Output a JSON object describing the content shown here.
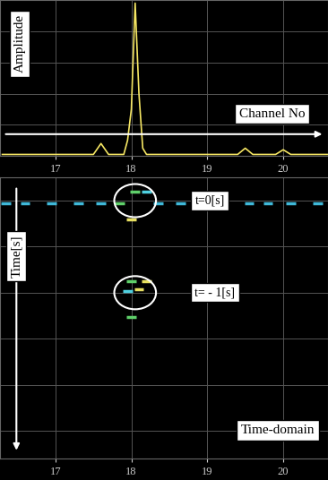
{
  "chart_data": [
    {
      "type": "line",
      "y_label": "Amplitude",
      "x_label": "Channel No",
      "x": [
        16.3,
        16.6,
        16.9,
        17.2,
        17.5,
        17.6,
        17.7,
        17.9,
        17.95,
        18.0,
        18.05,
        18.1,
        18.15,
        18.2,
        18.5,
        18.8,
        19.1,
        19.4,
        19.5,
        19.6,
        19.9,
        20.0,
        20.1,
        20.4,
        20.59
      ],
      "values": [
        1,
        1,
        1,
        1,
        1,
        8,
        1,
        1,
        10,
        30,
        98,
        40,
        5,
        1,
        1,
        1,
        1,
        1,
        5,
        1,
        1,
        4,
        1,
        1,
        1
      ],
      "color": "#f5e663",
      "xlim": [
        16.27,
        20.59
      ],
      "xticks": [
        17,
        18,
        19,
        20
      ],
      "ylim": [
        0,
        100
      ],
      "yticks": [
        0,
        20,
        40,
        60,
        80,
        100
      ],
      "grid": true,
      "tick_labels": "x"
    },
    {
      "type": "scatter",
      "title": "Time-domain",
      "y_label": "Time[s]",
      "marker": "_",
      "x": [
        16.35,
        16.6,
        16.95,
        17.3,
        17.6,
        17.85,
        18.35,
        18.65,
        19.15,
        19.55,
        19.8,
        20.1,
        20.45,
        18.05,
        18.2,
        18.0,
        18.0,
        18.2,
        18.1,
        17.95,
        18.0
      ],
      "values": [
        -0.03,
        -0.03,
        -0.03,
        -0.03,
        -0.03,
        -0.03,
        -0.03,
        -0.03,
        -0.03,
        -0.03,
        -0.03,
        -0.03,
        -0.03,
        0.1,
        0.1,
        -0.2,
        -0.88,
        -0.88,
        -0.96,
        -0.98,
        -1.26
      ],
      "colors": [
        "#3fb8d8",
        "#3fb8d8",
        "#3fb8d8",
        "#3fb8d8",
        "#3fb8d8",
        "#5fd06a",
        "#3fb8d8",
        "#3fb8d8",
        "#3fb8d8",
        "#3fb8d8",
        "#3fb8d8",
        "#3fb8d8",
        "#3fb8d8",
        "#5fd06a",
        "#4fd0e0",
        "#e8e060",
        "#5fd06a",
        "#e8e060",
        "#e8e060",
        "#4fd0e0",
        "#5fd06a"
      ],
      "xlim": [
        16.27,
        20.59
      ],
      "xticks": [
        17,
        18,
        19,
        20
      ],
      "ylim": [
        -2.8,
        0.25
      ],
      "yticks": [
        -2.5,
        -2,
        -1.5,
        -1,
        -0.5,
        0
      ],
      "grid": true,
      "tick_labels": "x",
      "annotations": [
        {
          "label": "t=0[s]",
          "channel": 18.05,
          "time": 0
        },
        {
          "label": "t= - 1[s]",
          "channel": 18.05,
          "time": -1
        }
      ]
    }
  ]
}
